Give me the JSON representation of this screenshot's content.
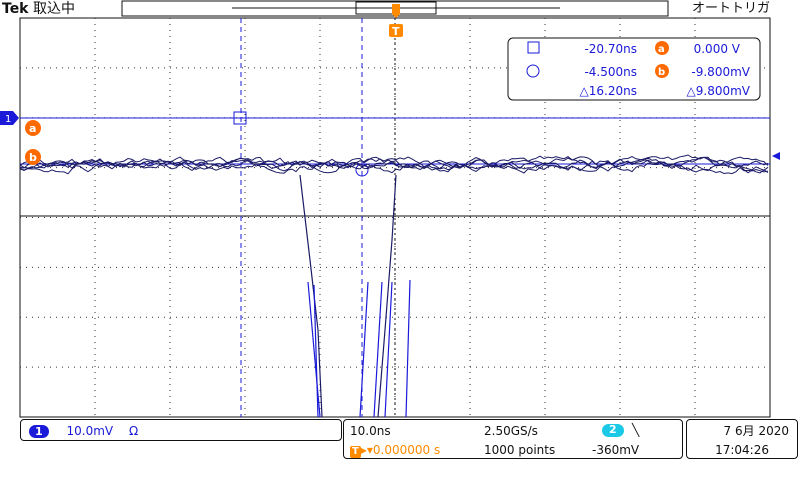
{
  "header": {
    "brand": "Tek",
    "acquisition_status": "取込中",
    "trigger_mode": "オートトリガ"
  },
  "cursor_readout": {
    "cursor_a_time": "-20.70ns",
    "cursor_a_label": "a",
    "cursor_a_value": "0.000 V",
    "cursor_b_time": "-4.500ns",
    "cursor_b_label": "b",
    "cursor_b_value": "-9.800mV",
    "delta_time": "△16.20ns",
    "delta_value": "△9.800mV"
  },
  "markers": {
    "channel1": "1",
    "ref_a": "a",
    "ref_b": "b",
    "trigger": "T"
  },
  "channel_panel": {
    "channel": "1",
    "scale": "10.0mV",
    "impedance_symbol": "Ω"
  },
  "timebase_panel": {
    "time_per_div": "10.0ns",
    "sample_rate": "2.50GS/s",
    "trigger_position_label": "T",
    "trigger_position": "▸▾0.000000 s",
    "record_length": "1000 points",
    "trigger_source": "2",
    "trigger_slope": "╲",
    "trigger_level": "-360mV"
  },
  "datetime_panel": {
    "date": "6月 2020",
    "day": "7",
    "time": "17:04:26"
  },
  "colors": {
    "channel1": "#1a1ad8",
    "channel2": "#19c9e6",
    "reference": "#ff6a00",
    "trigger": "#ff8a00",
    "trace": "#1b1b66"
  }
}
